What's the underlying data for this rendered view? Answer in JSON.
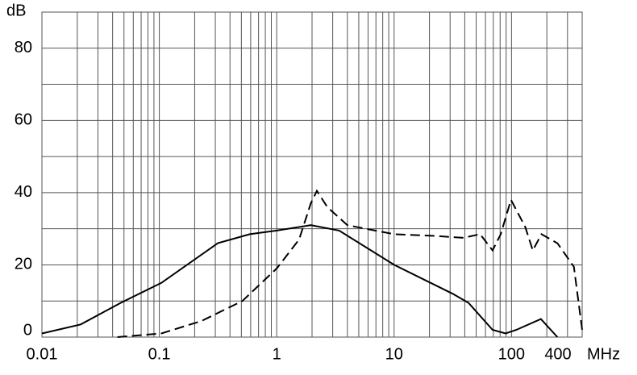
{
  "chart_data": {
    "type": "line",
    "y_label": "dB",
    "x_unit": "MHz",
    "xscale": "log",
    "minor_grid": true,
    "xlim": [
      0.01,
      400
    ],
    "xticks": [
      0.01,
      0.1,
      1,
      10,
      100,
      400
    ],
    "ylim": [
      0,
      90
    ],
    "yticks": [
      0,
      20,
      40,
      60,
      80
    ],
    "y_minor": [
      10,
      30,
      50,
      70,
      90
    ],
    "grid": true,
    "series": [
      {
        "color": "#000000",
        "dash": "solid",
        "x": [
          0.01,
          0.0214,
          0.047,
          0.104,
          0.315,
          0.59,
          1,
          1.95,
          3.4,
          10,
          31.6,
          43,
          69,
          89,
          110,
          178,
          246
        ],
        "values": [
          1,
          3.5,
          9.5,
          15,
          26,
          28.5,
          29.5,
          31,
          29.5,
          20,
          12,
          9.5,
          2,
          1,
          2,
          5,
          0
        ]
      },
      {
        "color": "#000000",
        "dash": "dashed",
        "x": [
          0.044,
          0.104,
          0.23,
          0.51,
          1,
          1.55,
          1.95,
          2.2,
          2.7,
          4,
          10,
          22.6,
          39,
          54,
          69,
          81,
          99,
          131,
          152,
          180,
          246,
          340,
          400
        ],
        "values": [
          0,
          1,
          4.5,
          10,
          19,
          27,
          37,
          40.5,
          36,
          31,
          28.5,
          28,
          27.5,
          28.5,
          24,
          28.5,
          38,
          30.5,
          24,
          28.5,
          26,
          19.5,
          2
        ]
      }
    ]
  }
}
